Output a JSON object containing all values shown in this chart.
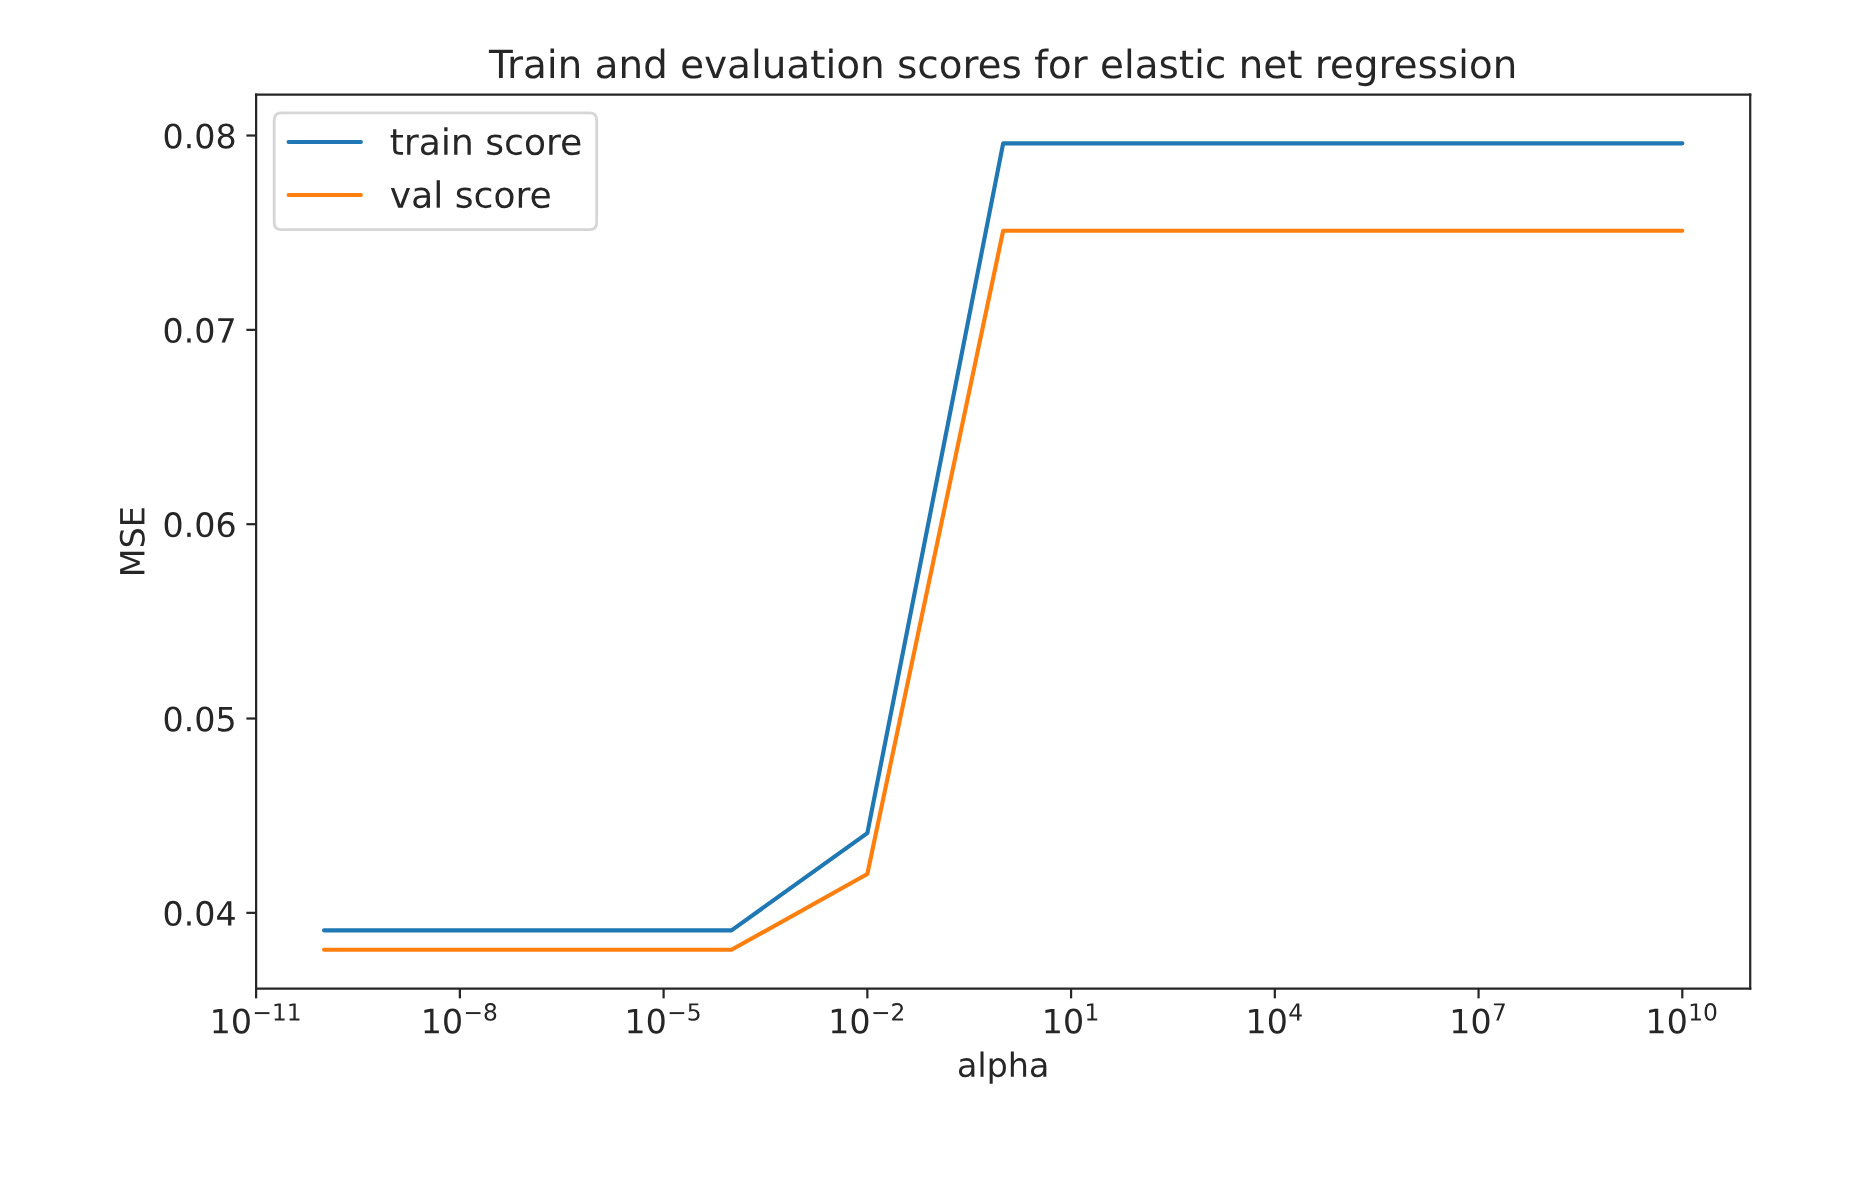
{
  "chart_data": {
    "type": "line",
    "title": "Train and evaluation scores for elastic net regression",
    "xlabel": "alpha",
    "ylabel": "MSE",
    "log": "x",
    "x": [
      1e-10,
      0.0001,
      0.01,
      1,
      10000000000.0
    ],
    "series": [
      {
        "name": "train score",
        "color": "#1f77b4",
        "values": [
          0.0391,
          0.0391,
          0.0441,
          0.0796,
          0.0796
        ]
      },
      {
        "name": "val score",
        "color": "#ff7f0e",
        "values": [
          0.0381,
          0.0381,
          0.042,
          0.0751,
          0.0751
        ]
      }
    ],
    "xlim": [
      1e-11,
      100000000000.0
    ],
    "xticks": [
      {
        "value": 1e-11,
        "label": "10$^{−11}$"
      },
      {
        "value": 1e-08,
        "label": "10$^{−8}$"
      },
      {
        "value": 1e-05,
        "label": "10$^{−5}$"
      },
      {
        "value": 0.01,
        "label": "10$^{−2}$"
      },
      {
        "value": 10,
        "label": "10$^{1}$"
      },
      {
        "value": 10000.0,
        "label": "10$^{4}$"
      },
      {
        "value": 10000000.0,
        "label": "10$^{7}$"
      },
      {
        "value": 10000000000.0,
        "label": "10$^{10}$"
      }
    ],
    "ylim": [
      0.0361,
      0.0821
    ],
    "yticks": [
      {
        "value": 0.04,
        "label": "0.04"
      },
      {
        "value": 0.05,
        "label": "0.05"
      },
      {
        "value": 0.06,
        "label": "0.06"
      },
      {
        "value": 0.07,
        "label": "0.07"
      },
      {
        "value": 0.08,
        "label": "0.08"
      }
    ],
    "legend": "top left",
    "grid": false
  }
}
